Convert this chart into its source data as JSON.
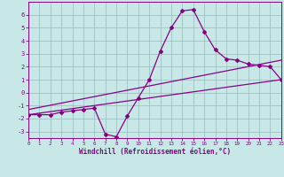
{
  "xlabel": "Windchill (Refroidissement éolien,°C)",
  "bg_color": "#c8e8e8",
  "line_color": "#880088",
  "grid_color": "#99bbbb",
  "xlim": [
    0,
    23
  ],
  "ylim": [
    -3.5,
    7.0
  ],
  "yticks": [
    -3,
    -2,
    -1,
    0,
    1,
    2,
    3,
    4,
    5,
    6
  ],
  "xticks": [
    0,
    1,
    2,
    3,
    4,
    5,
    6,
    7,
    8,
    9,
    10,
    11,
    12,
    13,
    14,
    15,
    16,
    17,
    18,
    19,
    20,
    21,
    22,
    23
  ],
  "line1_x": [
    0,
    1,
    2,
    3,
    4,
    5,
    6,
    7,
    8,
    9,
    10,
    11,
    12,
    13,
    14,
    15,
    16,
    17,
    18,
    19,
    20,
    21,
    22,
    23
  ],
  "line1_y": [
    -1.7,
    -1.7,
    -1.7,
    -1.5,
    -1.4,
    -1.3,
    -1.2,
    -3.2,
    -3.4,
    -1.8,
    -0.4,
    1.0,
    3.2,
    5.0,
    6.3,
    6.4,
    4.7,
    3.3,
    2.6,
    2.5,
    2.2,
    2.1,
    2.0,
    1.0
  ],
  "line2_x": [
    0,
    23
  ],
  "line2_y": [
    -1.7,
    1.0
  ],
  "line3_x": [
    0,
    23
  ],
  "line3_y": [
    -1.3,
    2.5
  ]
}
